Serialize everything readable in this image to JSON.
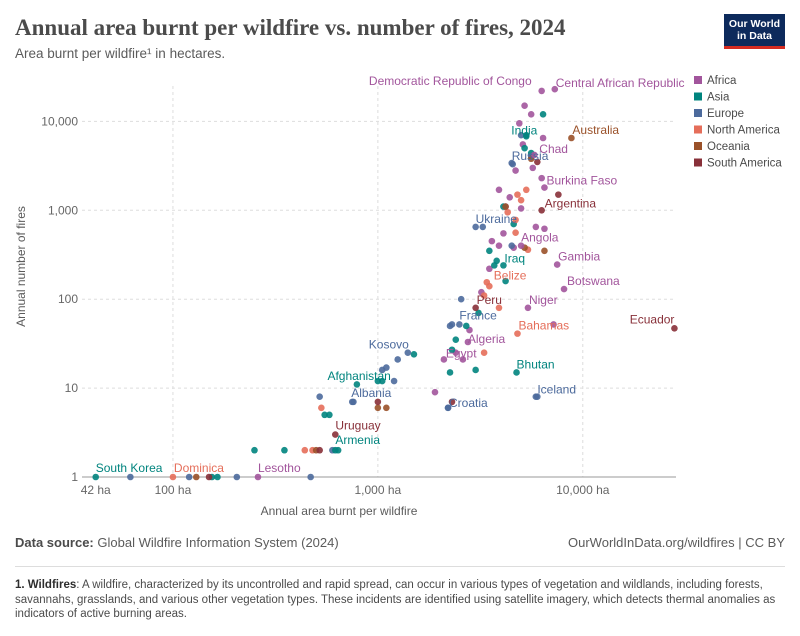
{
  "header": {
    "title": "Annual area burnt per wildfire vs. number of fires, 2024",
    "subtitle": "Area burnt per wildfire¹ in hectares.",
    "logo_line1": "Our World",
    "logo_line2": "in Data"
  },
  "footer": {
    "source_label": "Data source:",
    "source_text": "Global Wildfire Information System (2024)",
    "site": "OurWorldInData.org/wildfires | CC BY",
    "note_label": "1. Wildfires",
    "note_text": ": A wildfire, characterized by its uncontrolled and rapid spread, can occur in various types of vegetation and wildlands, including forests, savannahs, grasslands, and various other vegetation types. These incidents are identified using satellite imagery, which detects thermal anomalies as indicators of active burning areas."
  },
  "chart_data": {
    "type": "scatter",
    "title": "Annual area burnt per wildfire vs. number of fires, 2024",
    "subtitle": "Area burnt per wildfire¹ in hectares.",
    "xlabel": "Annual area burnt per wildfire",
    "ylabel": "Annual number of fires",
    "x_scale": "log",
    "y_scale": "log",
    "xlim": [
      36,
      28500
    ],
    "ylim": [
      1,
      25000
    ],
    "x_ticks": [
      {
        "value": 42,
        "label": "42 ha"
      },
      {
        "value": 100,
        "label": "100 ha"
      },
      {
        "value": 1000,
        "label": "1,000 ha"
      },
      {
        "value": 10000,
        "label": "10,000 ha"
      }
    ],
    "y_ticks": [
      {
        "value": 1,
        "label": "1"
      },
      {
        "value": 10,
        "label": "10"
      },
      {
        "value": 100,
        "label": "100"
      },
      {
        "value": 1000,
        "label": "1,000"
      },
      {
        "value": 10000,
        "label": "10,000"
      }
    ],
    "grid": true,
    "legend_position": "right",
    "legend": [
      {
        "name": "Africa",
        "color": "#a2559c"
      },
      {
        "name": "Asia",
        "color": "#00847e"
      },
      {
        "name": "Europe",
        "color": "#4c6a9c"
      },
      {
        "name": "North America",
        "color": "#e56e5a"
      },
      {
        "name": "Oceania",
        "color": "#9a5129"
      },
      {
        "name": "South America",
        "color": "#883039"
      }
    ],
    "labeled_points": [
      {
        "name": "Democratic Republic of Congo",
        "region": "Africa",
        "x": 6300,
        "y": 22000
      },
      {
        "name": "Central African Republic",
        "region": "Africa",
        "x": 7300,
        "y": 23000
      },
      {
        "name": "India",
        "region": "Asia",
        "x": 5300,
        "y": 6800
      },
      {
        "name": "Australia",
        "region": "Oceania",
        "x": 8800,
        "y": 6500
      },
      {
        "name": "Chad",
        "region": "Africa",
        "x": 5800,
        "y": 4200
      },
      {
        "name": "Russia",
        "region": "Europe",
        "x": 4500,
        "y": 3400
      },
      {
        "name": "Burkina Faso",
        "region": "Africa",
        "x": 6500,
        "y": 1800
      },
      {
        "name": "Argentina",
        "region": "South America",
        "x": 6300,
        "y": 1000
      },
      {
        "name": "Ukraine",
        "region": "Europe",
        "x": 3000,
        "y": 650
      },
      {
        "name": "Angola",
        "region": "Africa",
        "x": 5000,
        "y": 400
      },
      {
        "name": "Gambia",
        "region": "Africa",
        "x": 7500,
        "y": 245
      },
      {
        "name": "Iraq",
        "region": "Asia",
        "x": 4100,
        "y": 240
      },
      {
        "name": "Belize",
        "region": "North America",
        "x": 3400,
        "y": 155
      },
      {
        "name": "Botswana",
        "region": "Africa",
        "x": 8100,
        "y": 130
      },
      {
        "name": "Peru",
        "region": "South America",
        "x": 3000,
        "y": 80
      },
      {
        "name": "Niger",
        "region": "Africa",
        "x": 5400,
        "y": 80
      },
      {
        "name": "Ecuador",
        "region": "South America",
        "x": 28000,
        "y": 47
      },
      {
        "name": "France",
        "region": "Europe",
        "x": 2500,
        "y": 52
      },
      {
        "name": "Bahamas",
        "region": "North America",
        "x": 4800,
        "y": 41
      },
      {
        "name": "Algeria",
        "region": "Africa",
        "x": 2750,
        "y": 33
      },
      {
        "name": "Kosovo",
        "region": "Europe",
        "x": 1400,
        "y": 25
      },
      {
        "name": "Egypt",
        "region": "Africa",
        "x": 2100,
        "y": 21
      },
      {
        "name": "Afghanistan",
        "region": "Asia",
        "x": 1000,
        "y": 12
      },
      {
        "name": "Bhutan",
        "region": "Asia",
        "x": 4750,
        "y": 15
      },
      {
        "name": "Albania",
        "region": "Europe",
        "x": 750,
        "y": 7
      },
      {
        "name": "Iceland",
        "region": "Europe",
        "x": 6000,
        "y": 8
      },
      {
        "name": "Croatia",
        "region": "Europe",
        "x": 2200,
        "y": 6
      },
      {
        "name": "Uruguay",
        "region": "South America",
        "x": 620,
        "y": 3
      },
      {
        "name": "Armenia",
        "region": "Asia",
        "x": 620,
        "y": 2
      },
      {
        "name": "South Korea",
        "region": "Asia",
        "x": 42,
        "y": 1
      },
      {
        "name": "Dominica",
        "region": "North America",
        "x": 100,
        "y": 1
      },
      {
        "name": "Lesotho",
        "region": "Africa",
        "x": 260,
        "y": 1
      }
    ],
    "other_points": [
      {
        "region": "Africa",
        "x": 5200,
        "y": 15000
      },
      {
        "region": "Africa",
        "x": 5600,
        "y": 12000
      },
      {
        "region": "Africa",
        "x": 4900,
        "y": 9500
      },
      {
        "region": "Africa",
        "x": 6400,
        "y": 6500
      },
      {
        "region": "Africa",
        "x": 5100,
        "y": 5500
      },
      {
        "region": "Africa",
        "x": 4700,
        "y": 2800
      },
      {
        "region": "Africa",
        "x": 5700,
        "y": 3000
      },
      {
        "region": "Africa",
        "x": 6300,
        "y": 2300
      },
      {
        "region": "Africa",
        "x": 3900,
        "y": 1700
      },
      {
        "region": "Africa",
        "x": 4400,
        "y": 1400
      },
      {
        "region": "Africa",
        "x": 4200,
        "y": 1100
      },
      {
        "region": "Africa",
        "x": 5000,
        "y": 1050
      },
      {
        "region": "Africa",
        "x": 5900,
        "y": 650
      },
      {
        "region": "Africa",
        "x": 6500,
        "y": 620
      },
      {
        "region": "Africa",
        "x": 4100,
        "y": 550
      },
      {
        "region": "Africa",
        "x": 3600,
        "y": 450
      },
      {
        "region": "Africa",
        "x": 3900,
        "y": 400
      },
      {
        "region": "Africa",
        "x": 4600,
        "y": 380
      },
      {
        "region": "Africa",
        "x": 3500,
        "y": 220
      },
      {
        "region": "Africa",
        "x": 3200,
        "y": 120
      },
      {
        "region": "Africa",
        "x": 7200,
        "y": 52
      },
      {
        "region": "Africa",
        "x": 2800,
        "y": 45
      },
      {
        "region": "Africa",
        "x": 2400,
        "y": 25
      },
      {
        "region": "Africa",
        "x": 2600,
        "y": 21
      },
      {
        "region": "Africa",
        "x": 1900,
        "y": 9
      },
      {
        "region": "Asia",
        "x": 6400,
        "y": 12000
      },
      {
        "region": "Asia",
        "x": 5300,
        "y": 7000
      },
      {
        "region": "Asia",
        "x": 5200,
        "y": 5000
      },
      {
        "region": "Asia",
        "x": 5600,
        "y": 4400
      },
      {
        "region": "Asia",
        "x": 4100,
        "y": 1100
      },
      {
        "region": "Asia",
        "x": 4600,
        "y": 700
      },
      {
        "region": "Asia",
        "x": 3500,
        "y": 350
      },
      {
        "region": "Asia",
        "x": 3800,
        "y": 270
      },
      {
        "region": "Asia",
        "x": 3700,
        "y": 240
      },
      {
        "region": "Asia",
        "x": 4200,
        "y": 160
      },
      {
        "region": "Asia",
        "x": 3100,
        "y": 70
      },
      {
        "region": "Asia",
        "x": 2700,
        "y": 50
      },
      {
        "region": "Asia",
        "x": 2400,
        "y": 35
      },
      {
        "region": "Asia",
        "x": 2300,
        "y": 27
      },
      {
        "region": "Asia",
        "x": 1500,
        "y": 24
      },
      {
        "region": "Asia",
        "x": 3000,
        "y": 16
      },
      {
        "region": "Asia",
        "x": 2250,
        "y": 15
      },
      {
        "region": "Asia",
        "x": 790,
        "y": 11
      },
      {
        "region": "Asia",
        "x": 1050,
        "y": 12
      },
      {
        "region": "Asia",
        "x": 550,
        "y": 5
      },
      {
        "region": "Asia",
        "x": 580,
        "y": 5
      },
      {
        "region": "Asia",
        "x": 250,
        "y": 2
      },
      {
        "region": "Asia",
        "x": 350,
        "y": 2
      },
      {
        "region": "Asia",
        "x": 640,
        "y": 2
      },
      {
        "region": "Asia",
        "x": 155,
        "y": 1
      },
      {
        "region": "Asia",
        "x": 165,
        "y": 1
      },
      {
        "region": "Europe",
        "x": 5000,
        "y": 7000
      },
      {
        "region": "Europe",
        "x": 4550,
        "y": 3300
      },
      {
        "region": "Europe",
        "x": 5600,
        "y": 4000
      },
      {
        "region": "Europe",
        "x": 3250,
        "y": 650
      },
      {
        "region": "Europe",
        "x": 4500,
        "y": 400
      },
      {
        "region": "Europe",
        "x": 2550,
        "y": 100
      },
      {
        "region": "Europe",
        "x": 2300,
        "y": 52
      },
      {
        "region": "Europe",
        "x": 2250,
        "y": 50
      },
      {
        "region": "Europe",
        "x": 1100,
        "y": 17
      },
      {
        "region": "Europe",
        "x": 1050,
        "y": 16
      },
      {
        "region": "Europe",
        "x": 1250,
        "y": 21
      },
      {
        "region": "Europe",
        "x": 520,
        "y": 8
      },
      {
        "region": "Europe",
        "x": 760,
        "y": 7
      },
      {
        "region": "Europe",
        "x": 1200,
        "y": 12
      },
      {
        "region": "Europe",
        "x": 2200,
        "y": 6
      },
      {
        "region": "Europe",
        "x": 5900,
        "y": 8
      },
      {
        "region": "Europe",
        "x": 600,
        "y": 2
      },
      {
        "region": "Europe",
        "x": 470,
        "y": 1
      },
      {
        "region": "Europe",
        "x": 205,
        "y": 1
      },
      {
        "region": "Europe",
        "x": 120,
        "y": 1
      },
      {
        "region": "Europe",
        "x": 62,
        "y": 1
      },
      {
        "region": "North America",
        "x": 5300,
        "y": 1700
      },
      {
        "region": "North America",
        "x": 4800,
        "y": 1500
      },
      {
        "region": "North America",
        "x": 5000,
        "y": 1300
      },
      {
        "region": "North America",
        "x": 4300,
        "y": 950
      },
      {
        "region": "North America",
        "x": 4700,
        "y": 780
      },
      {
        "region": "North America",
        "x": 4700,
        "y": 560
      },
      {
        "region": "North America",
        "x": 5400,
        "y": 360
      },
      {
        "region": "North America",
        "x": 3500,
        "y": 140
      },
      {
        "region": "North America",
        "x": 3900,
        "y": 80
      },
      {
        "region": "North America",
        "x": 3300,
        "y": 110
      },
      {
        "region": "North America",
        "x": 3300,
        "y": 25
      },
      {
        "region": "North America",
        "x": 530,
        "y": 6
      },
      {
        "region": "North America",
        "x": 480,
        "y": 2
      },
      {
        "region": "North America",
        "x": 440,
        "y": 2
      },
      {
        "region": "Oceania",
        "x": 5600,
        "y": 3800
      },
      {
        "region": "Oceania",
        "x": 4200,
        "y": 1100
      },
      {
        "region": "Oceania",
        "x": 5200,
        "y": 380
      },
      {
        "region": "Oceania",
        "x": 6500,
        "y": 350
      },
      {
        "region": "Oceania",
        "x": 1000,
        "y": 6
      },
      {
        "region": "Oceania",
        "x": 1100,
        "y": 6
      },
      {
        "region": "Oceania",
        "x": 500,
        "y": 2
      },
      {
        "region": "Oceania",
        "x": 130,
        "y": 1
      },
      {
        "region": "South America",
        "x": 7600,
        "y": 1500
      },
      {
        "region": "South America",
        "x": 6000,
        "y": 3500
      },
      {
        "region": "South America",
        "x": 1000,
        "y": 7
      },
      {
        "region": "South America",
        "x": 520,
        "y": 2
      },
      {
        "region": "South America",
        "x": 2300,
        "y": 7
      },
      {
        "region": "South America",
        "x": 150,
        "y": 1
      }
    ]
  }
}
